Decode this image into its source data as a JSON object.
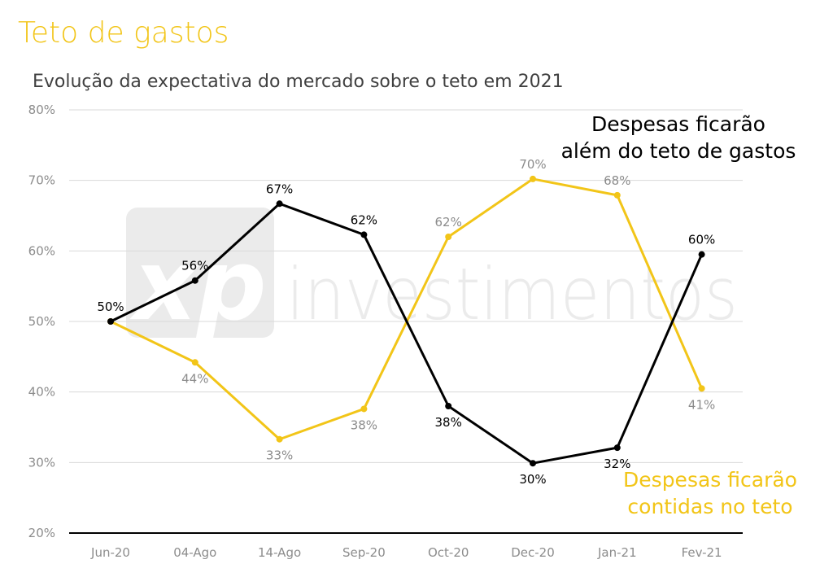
{
  "chart_data": {
    "type": "line",
    "title": "Teto de gastos",
    "subtitle": "Evolução da expectativa do mercado sobre o teto em 2021",
    "categories": [
      "Jun-20",
      "04-Ago",
      "14-Ago",
      "Sep-20",
      "Oct-20",
      "Dec-20",
      "Jan-21",
      "Fev-21"
    ],
    "ylim": [
      20,
      80
    ],
    "yticks": [
      20,
      30,
      40,
      50,
      60,
      70,
      80
    ],
    "ytick_labels": [
      "20%",
      "30%",
      "40%",
      "50%",
      "60%",
      "70%",
      "80%"
    ],
    "xlabel": "",
    "ylabel": "",
    "grid": true,
    "series": [
      {
        "name": "Despesas ficarão além do teto de gastos",
        "color": "#000000",
        "values": [
          50,
          55.8,
          66.7,
          62.3,
          38,
          29.9,
          32.1,
          59.5
        ],
        "labels": [
          "50%",
          "56%",
          "67%",
          "62%",
          "38%",
          "30%",
          "32%",
          "60%"
        ]
      },
      {
        "name": "Despesas ficarão contidas no teto",
        "color": "#f2c518",
        "values": [
          50,
          44.2,
          33.3,
          37.6,
          62,
          70.2,
          67.9,
          40.5
        ],
        "labels": [
          "50%",
          "44%",
          "33%",
          "38%",
          "62%",
          "70%",
          "68%",
          "41%"
        ]
      }
    ],
    "annotations": [
      {
        "series": 0,
        "lines": [
          "Despesas ficarão",
          "além do teto de gastos"
        ]
      },
      {
        "series": 1,
        "lines": [
          "Despesas ficarão",
          "contidas no teto"
        ]
      }
    ],
    "watermark": {
      "mark": "xp",
      "text": "investimentos"
    }
  },
  "colors": {
    "title": "#f2c518",
    "subtitle": "#404040",
    "tick": "#8c8c8c",
    "grid": "#d9d9d9",
    "gray_label": "#8c8c8c",
    "watermark": "#ebebeb"
  }
}
